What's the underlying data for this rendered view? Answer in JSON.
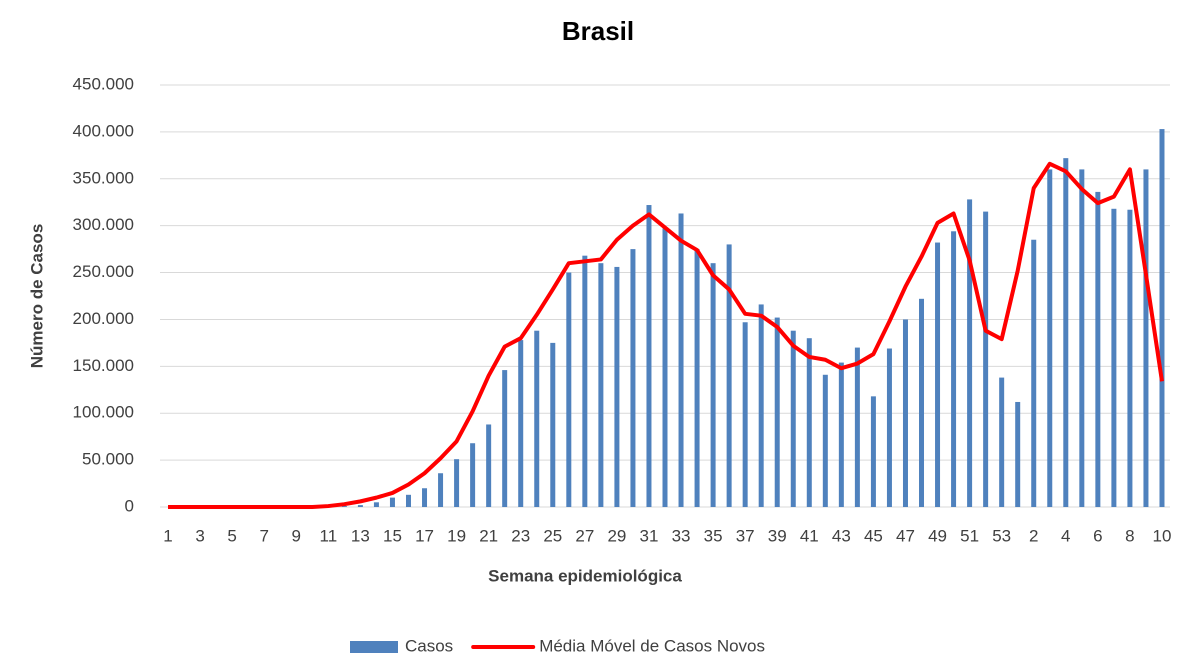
{
  "chart_data": {
    "type": "bar_line",
    "title": "Brasil",
    "x_label": "Semana epidemiológica",
    "y_label": "Número de Casos",
    "categories": [
      "1",
      null,
      "3",
      null,
      "5",
      null,
      "7",
      null,
      "9",
      null,
      "11",
      null,
      "13",
      null,
      "15",
      null,
      "17",
      null,
      "19",
      null,
      "21",
      null,
      "23",
      null,
      "25",
      null,
      "27",
      null,
      "29",
      null,
      "31",
      null,
      "33",
      null,
      "35",
      null,
      "37",
      null,
      "39",
      null,
      "41",
      null,
      "43",
      null,
      "45",
      null,
      "47",
      null,
      "49",
      null,
      "51",
      null,
      "53",
      null,
      "2",
      null,
      "4",
      null,
      "6",
      null,
      "8",
      null,
      "10"
    ],
    "series": [
      {
        "name": "Casos",
        "type": "bar",
        "color": "#4f81bd",
        "values": [
          0,
          0,
          0,
          0,
          0,
          0,
          0,
          0,
          0,
          0,
          0,
          1000,
          2000,
          5000,
          10000,
          13000,
          20000,
          36000,
          51000,
          68000,
          88000,
          146000,
          178000,
          188000,
          175000,
          250000,
          268000,
          260000,
          256000,
          275000,
          322000,
          297000,
          313000,
          275000,
          260000,
          280000,
          197000,
          216000,
          202000,
          188000,
          180000,
          141000,
          154000,
          170000,
          118000,
          169000,
          200000,
          222000,
          282000,
          294000,
          328000,
          315000,
          138000,
          112000,
          285000,
          360000,
          372000,
          360000,
          336000,
          318000,
          317000,
          360000,
          403000
        ]
      },
      {
        "name": "Média Móvel de Casos Novos",
        "type": "line",
        "color": "#ff0000",
        "values": [
          0,
          0,
          0,
          0,
          0,
          0,
          0,
          0,
          0,
          0,
          1000,
          3000,
          6000,
          10000,
          15000,
          24000,
          36000,
          52000,
          70000,
          102000,
          140000,
          171000,
          180000,
          205000,
          232000,
          260000,
          262000,
          264000,
          285000,
          300000,
          312000,
          298000,
          284000,
          274000,
          247000,
          232000,
          206000,
          204000,
          192000,
          172000,
          160000,
          157000,
          148000,
          153000,
          163000,
          198000,
          235000,
          267000,
          303000,
          313000,
          263000,
          188000,
          179000,
          252000,
          340000,
          366000,
          358000,
          339000,
          324000,
          331000,
          360000,
          248000,
          134000
        ]
      }
    ],
    "ylim": [
      0,
      450000
    ],
    "yticks": [
      0,
      {
        "value": 50000,
        "label": "50.000"
      },
      {
        "value": 100000,
        "label": "100.000"
      },
      {
        "value": 150000,
        "label": "150.000"
      },
      {
        "value": 200000,
        "label": "200.000"
      },
      {
        "value": 250000,
        "label": "250.000"
      },
      {
        "value": 300000,
        "label": "300.000"
      },
      {
        "value": 350000,
        "label": "350.000"
      },
      {
        "value": 400000,
        "label": "400.000"
      },
      {
        "value": 450000,
        "label": "450.000"
      }
    ],
    "grid": true,
    "legend": "bottom"
  }
}
